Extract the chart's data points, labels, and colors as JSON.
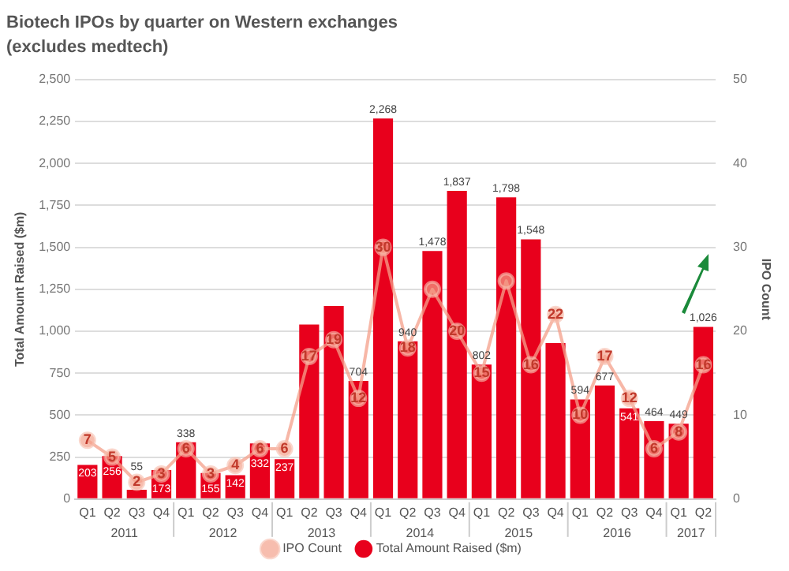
{
  "chart_data": {
    "type": "bar",
    "title": "Biotech IPOs by quarter on Western exchanges",
    "subtitle": "(excludes medtech)",
    "ylabel": "Total Amount Raised ($m)",
    "y2label": "IPO Count",
    "categories": [
      "Q1",
      "Q2",
      "Q3",
      "Q4",
      "Q1",
      "Q2",
      "Q3",
      "Q4",
      "Q1",
      "Q2",
      "Q3",
      "Q4",
      "Q1",
      "Q2",
      "Q3",
      "Q4",
      "Q1",
      "Q2",
      "Q3",
      "Q4",
      "Q1",
      "Q2",
      "Q3",
      "Q4",
      "Q1",
      "Q2"
    ],
    "annotations": [
      "2011",
      "2012",
      "2013",
      "2014",
      "2015",
      "2016",
      "2017"
    ],
    "series": [
      {
        "name": "Total Amount Raised ($m)",
        "color": "#e8001c",
        "values": [
          203,
          256,
          55,
          173,
          338,
          155,
          142,
          332,
          237,
          1040,
          1150,
          704,
          2268,
          940,
          1478,
          1837,
          802,
          1798,
          1548,
          930,
          594,
          677,
          541,
          464,
          449,
          1026
        ],
        "value_labels": [
          "203",
          "256",
          "55",
          "173",
          "338",
          "155",
          "142",
          "332",
          "237",
          null,
          null,
          "704",
          "2,268",
          "940",
          "1,478",
          "1,837",
          "802",
          "1,798",
          "1,548",
          null,
          "594",
          "677",
          "541",
          "464",
          "449",
          "1,026"
        ]
      },
      {
        "name": "IPO Count",
        "type": "line",
        "axis": "y2",
        "color": "#f4a08a",
        "marker": "circle",
        "values": [
          7,
          5,
          2,
          3,
          6,
          3,
          4,
          6,
          6,
          17,
          19,
          12,
          30,
          18,
          25,
          20,
          15,
          26,
          16,
          22,
          10,
          17,
          12,
          6,
          8,
          16
        ],
        "value_labels": [
          "7",
          "5",
          "2",
          "3",
          "6",
          "3",
          "4",
          "6",
          "6",
          "17",
          "19",
          "12",
          "30",
          "18",
          null,
          "20",
          "15",
          null,
          "16",
          "22",
          "10",
          "17",
          "12",
          "6",
          "8",
          "16"
        ]
      }
    ],
    "ylim": [
      0,
      2500
    ],
    "yticks": [
      0,
      {
        "value": 250,
        "label": "250"
      },
      {
        "value": 500,
        "label": "500"
      },
      {
        "value": 750,
        "label": "750"
      },
      {
        "value": 1000,
        "label": "1,000"
      },
      {
        "value": 1250,
        "label": "1,250"
      },
      {
        "value": 1500,
        "label": "1,500"
      },
      {
        "value": 1750,
        "label": "1,750"
      },
      {
        "value": 2000,
        "label": "2,000"
      },
      {
        "value": 2250,
        "label": "2,250"
      },
      {
        "value": 2500,
        "label": "2,500"
      }
    ],
    "y2lim": [
      0,
      50
    ],
    "y2ticks": [
      0,
      10,
      20,
      30,
      40,
      50
    ],
    "grid": "y",
    "legend": "bottom"
  }
}
